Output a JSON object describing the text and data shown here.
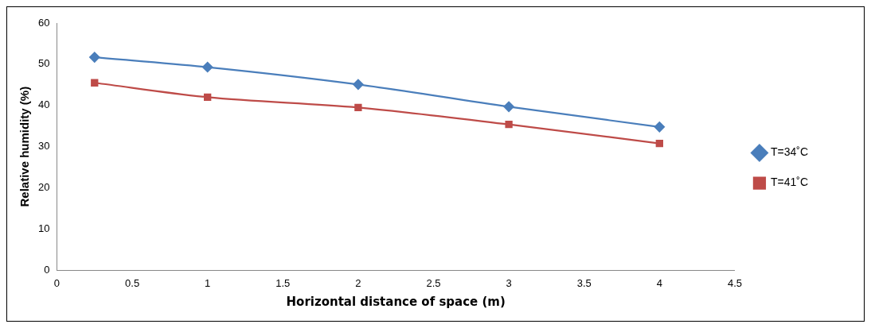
{
  "chart_data": {
    "type": "line",
    "xlabel": "Horizontal distance of space (m)",
    "ylabel": "Relative humidity (%)",
    "xlim": [
      0,
      4.5
    ],
    "xticks": [
      0,
      0.5,
      1,
      1.5,
      2,
      2.5,
      3,
      3.5,
      4,
      4.5
    ],
    "ylim": [
      0,
      60
    ],
    "yticks": [
      0,
      10,
      20,
      30,
      40,
      50,
      60
    ],
    "x": [
      0.25,
      1,
      2,
      3,
      4
    ],
    "series": [
      {
        "name": "T=34˚C",
        "color": "#4a7ebb",
        "marker": "diamond",
        "values": [
          51.7,
          49.3,
          45.1,
          39.7,
          34.8
        ]
      },
      {
        "name": "T=41˚C",
        "color": "#be4b48",
        "marker": "square",
        "values": [
          45.5,
          42.0,
          39.5,
          35.4,
          30.8
        ]
      }
    ],
    "grid": false,
    "legend": "right"
  }
}
